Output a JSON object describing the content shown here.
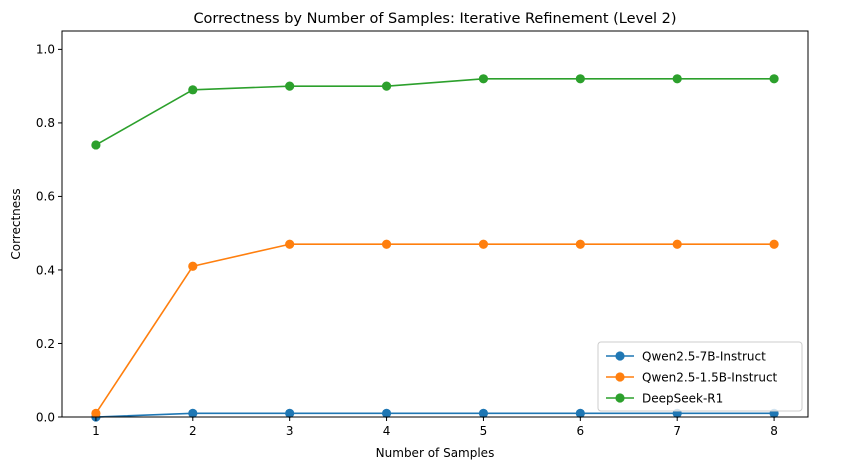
{
  "chart_data": {
    "type": "line",
    "title": "Correctness by Number of Samples: Iterative Refinement (Level 2)",
    "xlabel": "Number of Samples",
    "ylabel": "Correctness",
    "x": [
      1,
      2,
      3,
      4,
      5,
      6,
      7,
      8
    ],
    "xlim": [
      0.65,
      8.35
    ],
    "ylim": [
      0,
      1.05
    ],
    "xticks": [
      "1",
      "2",
      "3",
      "4",
      "5",
      "6",
      "7",
      "8"
    ],
    "yticks": [
      "0.0",
      "0.2",
      "0.4",
      "0.6",
      "0.8",
      "1.0"
    ],
    "grid": false,
    "legend_position": "lower-right",
    "series": [
      {
        "name": "Qwen2.5-7B-Instruct",
        "color": "#1f77b4",
        "values": [
          0.0,
          0.01,
          0.01,
          0.01,
          0.01,
          0.01,
          0.01,
          0.01
        ]
      },
      {
        "name": "Qwen2.5-1.5B-Instruct",
        "color": "#ff7f0e",
        "values": [
          0.01,
          0.41,
          0.47,
          0.47,
          0.47,
          0.47,
          0.47,
          0.47
        ]
      },
      {
        "name": "DeepSeek-R1",
        "color": "#2ca02c",
        "values": [
          0.74,
          0.89,
          0.9,
          0.9,
          0.92,
          0.92,
          0.92,
          0.92
        ]
      }
    ]
  }
}
